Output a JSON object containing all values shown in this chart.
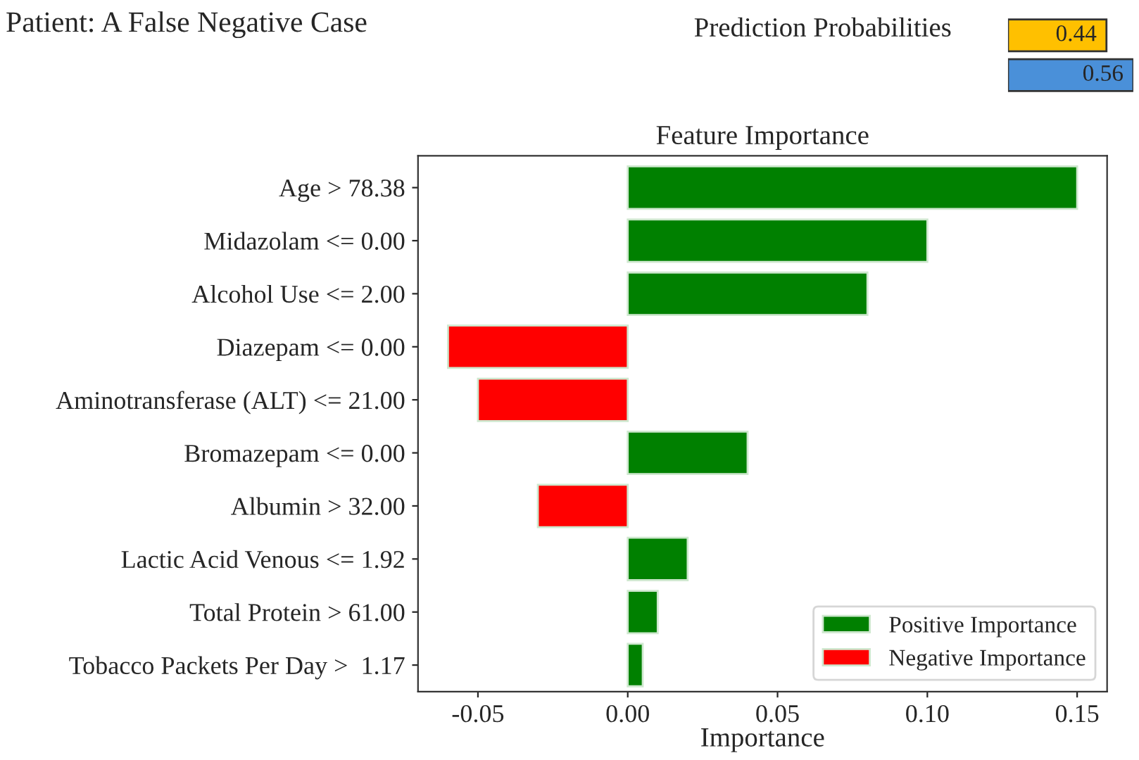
{
  "chart_data": [
    {
      "type": "bar",
      "orientation": "horizontal",
      "title": "Prediction Probabilities",
      "annotations": [
        "Patient: A False Negative Case"
      ],
      "categories": [
        null,
        null
      ],
      "values": [
        0.44,
        0.56
      ],
      "colors": [
        "#ffc000",
        "#4a90d9"
      ],
      "data_labels": true,
      "tick_labels": false
    },
    {
      "type": "bar",
      "orientation": "horizontal",
      "title": "Feature Importance",
      "xlabel": "Importance",
      "categories": [
        "Age > 78.38",
        "Midazolam <= 0.00",
        "Alcohol Use <= 2.00",
        "Diazepam <= 0.00",
        "Aminotransferase (ALT) <= 21.00",
        "Bromazepam <= 0.00",
        "Albumin > 32.00",
        "Lactic Acid Venous <= 1.92",
        "Total Protein > 61.00",
        "Tobacco Packets Per Day >  1.17"
      ],
      "series": [
        {
          "name": "Positive Importance",
          "color": "#008000",
          "values": [
            0.15,
            0.1,
            0.08,
            null,
            null,
            0.04,
            null,
            0.02,
            0.01,
            0.005
          ]
        },
        {
          "name": "Negative Importance",
          "color": "#ff0000",
          "values": [
            null,
            null,
            null,
            -0.06,
            -0.05,
            null,
            -0.03,
            null,
            null,
            null
          ]
        }
      ],
      "xlim": [
        -0.07,
        0.16
      ],
      "xticks": [
        {
          "value": -0.05,
          "label": "-0.05"
        },
        {
          "value": 0,
          "label": "0.00"
        },
        {
          "value": 0.05,
          "label": "0.05"
        },
        {
          "value": 0.1,
          "label": "0.10"
        },
        {
          "value": 0.15,
          "label": "0.15"
        }
      ],
      "legend": "bottom right",
      "grid": false
    }
  ]
}
